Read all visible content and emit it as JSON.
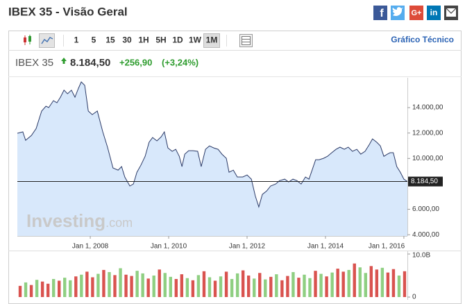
{
  "header": {
    "title": "IBEX 35 - Visão Geral",
    "share_buttons": [
      "f",
      "G+",
      "in"
    ]
  },
  "toolbar": {
    "intervals": [
      "1",
      "5",
      "15",
      "30",
      "1H",
      "5H",
      "1D",
      "1W",
      "1M"
    ],
    "selected_interval": "1M",
    "link": "Gráfico Técnico"
  },
  "quote": {
    "name": "IBEX 35",
    "price": "8.184,50",
    "change": "+256,90",
    "change_percent": "(+3,24%)"
  },
  "watermark": {
    "brand": "Investing",
    "suffix": ".com"
  },
  "chart_data": [
    {
      "type": "area",
      "color": "#2b3a67",
      "fill": "#d8e8fb",
      "x": [
        2006.14,
        2006.28,
        2006.35,
        2006.5,
        2006.62,
        2006.76,
        2006.87,
        2006.94,
        2007.06,
        2007.15,
        2007.24,
        2007.33,
        2007.42,
        2007.52,
        2007.61,
        2007.7,
        2007.77,
        2007.86,
        2007.95,
        2008.05,
        2008.18,
        2008.32,
        2008.44,
        2008.58,
        2008.71,
        2008.8,
        2008.88,
        2009.01,
        2009.1,
        2009.19,
        2009.29,
        2009.4,
        2009.5,
        2009.59,
        2009.7,
        2009.81,
        2009.89,
        2009.98,
        2010.09,
        2010.18,
        2010.27,
        2010.34,
        2010.41,
        2010.51,
        2010.62,
        2010.74,
        2010.83,
        2010.94,
        2011.04,
        2011.15,
        2011.26,
        2011.36,
        2011.47,
        2011.54,
        2011.65,
        2011.75,
        2011.89,
        2012.0,
        2012.11,
        2012.21,
        2012.3,
        2012.39,
        2012.5,
        2012.6,
        2012.73,
        2012.83,
        2012.96,
        2013.06,
        2013.17,
        2013.27,
        2013.38,
        2013.49,
        2013.58,
        2013.66,
        2013.75,
        2013.84,
        2013.95,
        2014.05,
        2014.16,
        2014.27,
        2014.37,
        2014.48,
        2014.58,
        2014.69,
        2014.8,
        2014.9,
        2015.01,
        2015.12,
        2015.2,
        2015.31,
        2015.4,
        2015.49,
        2015.58,
        2015.65,
        2015.73,
        2015.82,
        2015.91,
        2016.0,
        2016.09
      ],
      "values": [
        11980,
        12090,
        11430,
        11810,
        12360,
        13730,
        14110,
        14000,
        14550,
        14380,
        14820,
        15370,
        15090,
        15370,
        14820,
        15530,
        16020,
        15750,
        13730,
        13450,
        13730,
        12090,
        10890,
        9250,
        9080,
        9360,
        8540,
        7830,
        7990,
        8920,
        9460,
        10170,
        11270,
        11650,
        11380,
        11710,
        12090,
        10830,
        10560,
        10720,
        10170,
        9360,
        10340,
        10610,
        10610,
        10560,
        9360,
        10720,
        10990,
        10830,
        10720,
        10340,
        10010,
        8920,
        9080,
        8540,
        8540,
        8700,
        8370,
        7060,
        6190,
        7170,
        7440,
        7830,
        7990,
        8260,
        8370,
        8150,
        8370,
        8260,
        7990,
        8540,
        8370,
        9080,
        9900,
        9900,
        10010,
        10170,
        10450,
        10720,
        10890,
        10720,
        10890,
        10560,
        10720,
        10340,
        10560,
        11100,
        11540,
        11270,
        10990,
        10170,
        10340,
        10450,
        10450,
        9360,
        8920,
        8370,
        8184.5
      ],
      "xlim": [
        2006.14,
        2016.09
      ],
      "ylim": [
        3900,
        16350
      ],
      "xticks": [
        {
          "value": 2008,
          "label": "Jan 1, 2008"
        },
        {
          "value": 2010,
          "label": "Jan 1, 2010"
        },
        {
          "value": 2012,
          "label": "Jan 1, 2012"
        },
        {
          "value": 2014,
          "label": "Jan 1, 2014"
        },
        {
          "value": 2016,
          "label": "Jan 1, 2016"
        }
      ],
      "yticks": [
        {
          "value": 4000,
          "label": "4.000,00"
        },
        {
          "value": 6000,
          "label": "6.000,00"
        },
        {
          "value": 10000,
          "label": "10.000,00"
        },
        {
          "value": 12000,
          "label": "12.000,00"
        },
        {
          "value": 14000,
          "label": "14.000,00"
        }
      ],
      "last_price": {
        "value": 8184.5,
        "label": "8.184,50"
      }
    },
    {
      "type": "bar",
      "ylim": [
        0,
        10
      ],
      "yticks": [
        0,
        {
          "value": 10,
          "label": "10.0B"
        }
      ],
      "values": [
        2.6,
        3.4,
        2.8,
        4.0,
        3.6,
        3.1,
        4.2,
        3.8,
        4.5,
        3.9,
        4.8,
        5.2,
        5.9,
        4.6,
        5.4,
        6.3,
        5.8,
        5.1,
        6.7,
        5.2,
        4.9,
        6.1,
        5.5,
        4.3,
        5.0,
        6.4,
        5.6,
        4.7,
        4.2,
        5.3,
        4.4,
        3.9,
        5.1,
        6.0,
        4.6,
        3.8,
        4.8,
        5.9,
        4.2,
        5.5,
        6.2,
        5.0,
        4.3,
        5.6,
        4.1,
        4.7,
        5.3,
        3.9,
        4.9,
        5.8,
        4.5,
        5.2,
        4.4,
        6.1,
        5.4,
        4.8,
        5.7,
        6.6,
        5.9,
        6.3,
        7.8,
        6.9,
        5.6,
        7.2,
        6.4,
        6.8,
        5.7,
        6.5,
        5.0,
        6.0
      ],
      "colors": [
        "#d9534f",
        "#8fcf82",
        "#d9534f",
        "#8fcf82",
        "#d9534f",
        "#d9534f",
        "#8fcf82",
        "#d9534f",
        "#8fcf82",
        "#8fcf82",
        "#d9534f",
        "#8fcf82",
        "#d9534f",
        "#d9534f",
        "#8fcf82",
        "#d9534f",
        "#8fcf82",
        "#d9534f",
        "#8fcf82",
        "#d9534f",
        "#d9534f",
        "#8fcf82",
        "#8fcf82",
        "#d9534f",
        "#8fcf82",
        "#d9534f",
        "#8fcf82",
        "#8fcf82",
        "#d9534f",
        "#d9534f",
        "#8fcf82",
        "#d9534f",
        "#8fcf82",
        "#d9534f",
        "#8fcf82",
        "#d9534f",
        "#8fcf82",
        "#d9534f",
        "#8fcf82",
        "#8fcf82",
        "#d9534f",
        "#d9534f",
        "#8fcf82",
        "#d9534f",
        "#8fcf82",
        "#d9534f",
        "#8fcf82",
        "#d9534f",
        "#d9534f",
        "#8fcf82",
        "#d9534f",
        "#8fcf82",
        "#8fcf82",
        "#d9534f",
        "#8fcf82",
        "#d9534f",
        "#8fcf82",
        "#d9534f",
        "#d9534f",
        "#8fcf82",
        "#d9534f",
        "#8fcf82",
        "#8fcf82",
        "#d9534f",
        "#d9534f",
        "#8fcf82",
        "#d9534f",
        "#d9534f",
        "#8fcf82",
        "#d9534f"
      ]
    }
  ]
}
